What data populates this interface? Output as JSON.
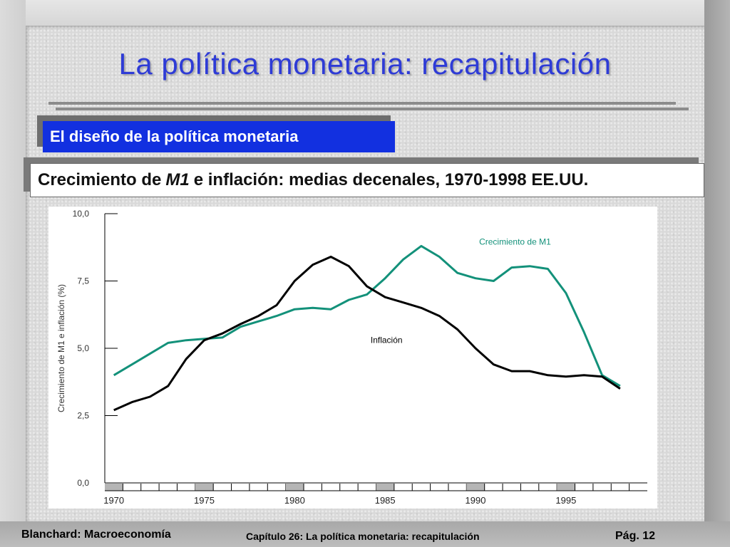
{
  "slide": {
    "title": "La política monetaria:  recapitulación",
    "subheading": "El diseño de la política monetaria",
    "caption_pre": "Crecimiento de",
    "caption_italic": "M1",
    "caption_post": "e inflación:  medias decenales, 1970-1998 EE.UU.",
    "footer_left": "Blanchard: Macroeconomía",
    "footer_mid": "Capítulo 26: La política monetaria: recapitulación",
    "footer_right": "Pág.  12"
  },
  "colors": {
    "title": "#2e3bd6",
    "subheading_bg": "#1230e0",
    "m1": "#13917a",
    "inflation": "#000000"
  },
  "chart_data": {
    "type": "line",
    "ylabel": "Crecimiento de M1 e inflación (%)",
    "xlabel": "",
    "ylim": [
      0,
      10
    ],
    "xlim": [
      1969.5,
      1999.5
    ],
    "y_ticks": [
      "10,0",
      "7,5",
      "5,0",
      "2,5",
      "0,0"
    ],
    "y_tick_values": [
      10,
      7.5,
      5,
      2.5,
      0
    ],
    "x_ticks": [
      "1970",
      "1975",
      "1980",
      "1985",
      "1990",
      "1995"
    ],
    "x_tick_values": [
      1970,
      1975,
      1980,
      1985,
      1990,
      1995
    ],
    "x": [
      1970,
      1971,
      1972,
      1973,
      1974,
      1975,
      1976,
      1977,
      1978,
      1979,
      1980,
      1981,
      1982,
      1983,
      1984,
      1985,
      1986,
      1987,
      1988,
      1989,
      1990,
      1991,
      1992,
      1993,
      1994,
      1995,
      1996,
      1997,
      1998
    ],
    "series": [
      {
        "name": "Crecimiento de M1",
        "values": [
          4.0,
          4.4,
          4.8,
          5.2,
          5.3,
          5.35,
          5.4,
          5.8,
          6.0,
          6.2,
          6.45,
          6.5,
          6.45,
          6.8,
          7.0,
          7.6,
          8.3,
          8.8,
          8.4,
          7.8,
          7.6,
          7.5,
          8.0,
          8.05,
          7.95,
          7.05,
          5.6,
          4.0,
          3.6
        ]
      },
      {
        "name": "Inflación",
        "values": [
          2.7,
          3.0,
          3.2,
          3.6,
          4.6,
          5.3,
          5.55,
          5.9,
          6.2,
          6.6,
          7.5,
          8.1,
          8.4,
          8.05,
          7.3,
          6.9,
          6.7,
          6.5,
          6.2,
          5.7,
          5.0,
          4.4,
          4.15,
          4.15,
          4.0,
          3.95,
          4.0,
          3.95,
          3.5
        ]
      }
    ]
  }
}
